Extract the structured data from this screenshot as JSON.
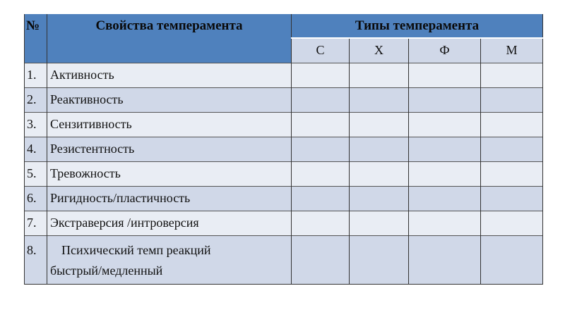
{
  "header": {
    "number": "№",
    "properties": "Свойства темперамента",
    "types": "Типы темперамента",
    "type_columns": [
      "С",
      "Х",
      "Ф",
      "М"
    ]
  },
  "rows": [
    {
      "num": "1.",
      "property": "Активность"
    },
    {
      "num": "2.",
      "property": "Реактивность"
    },
    {
      "num": "3.",
      "property": "Сензитивность"
    },
    {
      "num": "4.",
      "property": "Резистентность"
    },
    {
      "num": "5.",
      "property": "Тревожность"
    },
    {
      "num": "6.",
      "property": "Ригидность/пластичность"
    },
    {
      "num": "7.",
      "property": "Экстраверсия /интроверсия"
    },
    {
      "num": "8.",
      "property": "Психический темп реакций",
      "property_line2": "быстрый/медленный"
    }
  ],
  "colors": {
    "header": "#4f81bd",
    "row_light": "#e9edf4",
    "row_dark": "#d0d8e8"
  }
}
